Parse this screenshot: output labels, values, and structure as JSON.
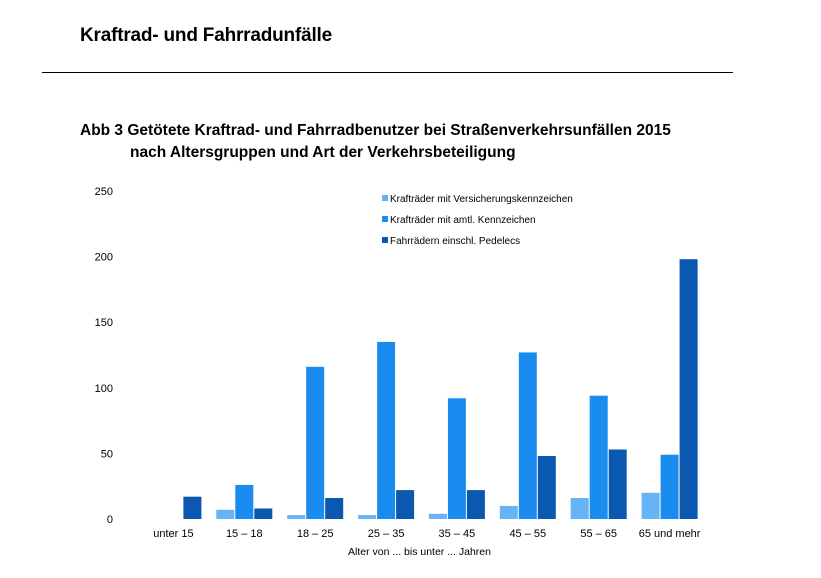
{
  "page": {
    "heading": "Kraftrad- und Fahrradunfälle"
  },
  "figure": {
    "title_line1": "Abb 3 Getötete Kraftrad- und Fahrradbenutzer bei Straßenverkehrsunfällen 2015",
    "title_line2": "nach Altersgruppen und Art der Verkehrsbeteiligung"
  },
  "chart_data": {
    "type": "bar",
    "categories": [
      "unter 15",
      "15 – 18",
      "18 – 25",
      "25 – 35",
      "35 – 45",
      "45 – 55",
      "55 – 65",
      "65 und mehr"
    ],
    "series": [
      {
        "name": "Krafträder mit Versicherungskennzeichen",
        "color": "#66b3f5",
        "values": [
          0,
          7,
          3,
          3,
          4,
          10,
          16,
          20
        ]
      },
      {
        "name": "Krafträder mit amtl. Kennzeichen",
        "color": "#1a8cf0",
        "values": [
          0,
          26,
          116,
          135,
          92,
          127,
          94,
          49
        ]
      },
      {
        "name": "Fahrrädern einschl. Pedelecs",
        "color": "#0a58b0",
        "values": [
          17,
          8,
          16,
          22,
          22,
          48,
          53,
          198
        ]
      }
    ],
    "yticks": [
      0,
      50,
      100,
      150,
      200,
      250
    ],
    "ylim": [
      0,
      250
    ],
    "xlabel": "Alter von ... bis unter ... Jahren",
    "ylabel": "",
    "grid": false,
    "legend_position": "top-center"
  }
}
